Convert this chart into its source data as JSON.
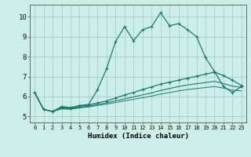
{
  "xlabel": "Humidex (Indice chaleur)",
  "bg_color": "#cceee8",
  "grid_color": "#aacccc",
  "line_color": "#1a7a6e",
  "x_ticks": [
    0,
    1,
    2,
    3,
    4,
    5,
    6,
    7,
    8,
    9,
    10,
    11,
    12,
    13,
    14,
    15,
    16,
    17,
    18,
    19,
    20,
    21,
    22,
    23
  ],
  "y_ticks": [
    5,
    6,
    7,
    8,
    9,
    10
  ],
  "ylim": [
    4.7,
    10.6
  ],
  "xlim": [
    -0.5,
    23.5
  ],
  "curve1_x": [
    0,
    1,
    2,
    3,
    4,
    5,
    6,
    7,
    8,
    9,
    10,
    11,
    12,
    13,
    14,
    15,
    16,
    17,
    18,
    19,
    20,
    21,
    22,
    23
  ],
  "curve1_y": [
    6.2,
    5.35,
    5.25,
    5.5,
    5.45,
    5.55,
    5.6,
    6.35,
    7.4,
    8.75,
    9.5,
    8.8,
    9.35,
    9.5,
    10.2,
    9.55,
    9.65,
    9.35,
    9.0,
    7.95,
    7.25,
    6.5,
    6.2,
    6.5
  ],
  "curve2_x": [
    0,
    1,
    2,
    3,
    4,
    5,
    6,
    7,
    8,
    9,
    10,
    11,
    12,
    13,
    14,
    15,
    16,
    17,
    18,
    19,
    20,
    21,
    22,
    23
  ],
  "curve2_y": [
    6.2,
    5.35,
    5.25,
    5.45,
    5.4,
    5.5,
    5.58,
    5.68,
    5.78,
    5.92,
    6.08,
    6.2,
    6.35,
    6.48,
    6.62,
    6.72,
    6.82,
    6.92,
    7.02,
    7.12,
    7.22,
    7.05,
    6.82,
    6.55
  ],
  "curve3_x": [
    0,
    1,
    2,
    3,
    4,
    5,
    6,
    7,
    8,
    9,
    10,
    11,
    12,
    13,
    14,
    15,
    16,
    17,
    18,
    19,
    20,
    21,
    22,
    23
  ],
  "curve3_y": [
    6.2,
    5.35,
    5.25,
    5.4,
    5.38,
    5.46,
    5.52,
    5.6,
    5.68,
    5.78,
    5.88,
    5.98,
    6.08,
    6.18,
    6.3,
    6.4,
    6.5,
    6.58,
    6.64,
    6.7,
    6.76,
    6.65,
    6.52,
    6.46
  ],
  "curve4_x": [
    0,
    1,
    2,
    3,
    4,
    5,
    6,
    7,
    8,
    9,
    10,
    11,
    12,
    13,
    14,
    15,
    16,
    17,
    18,
    19,
    20,
    21,
    22,
    23
  ],
  "curve4_y": [
    6.2,
    5.35,
    5.25,
    5.38,
    5.36,
    5.43,
    5.48,
    5.55,
    5.62,
    5.7,
    5.78,
    5.86,
    5.94,
    6.02,
    6.12,
    6.2,
    6.28,
    6.35,
    6.4,
    6.45,
    6.5,
    6.42,
    6.32,
    6.28
  ]
}
